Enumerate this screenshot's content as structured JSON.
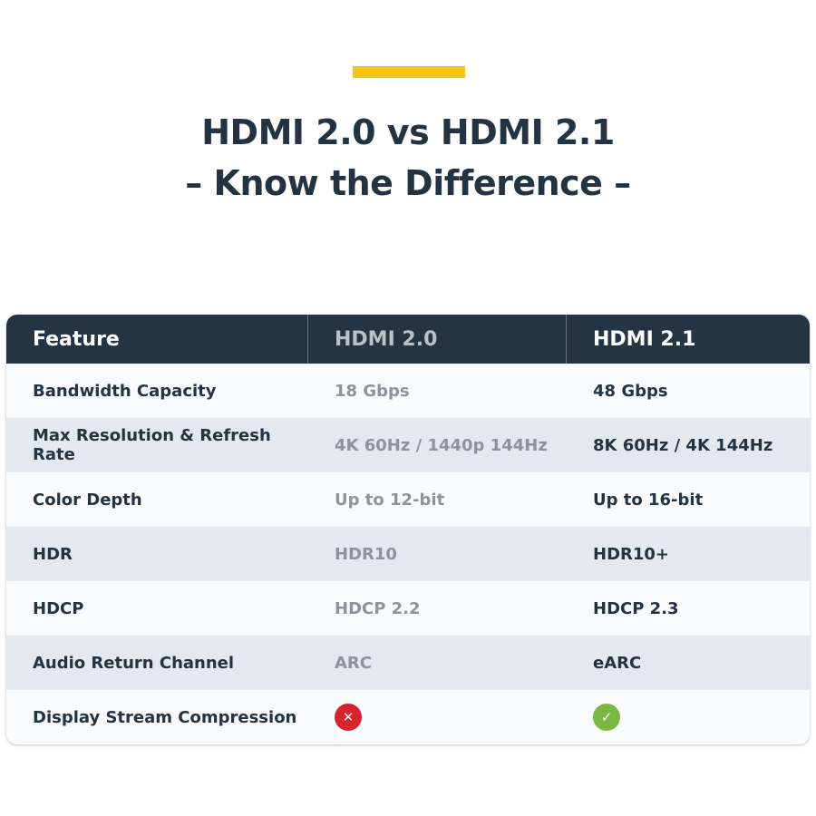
{
  "title_line1": "HDMI 2.0 vs HDMI 2.1",
  "title_line2": "– Know the Difference –",
  "accent_color": "#f5c518",
  "headers": [
    "Feature",
    "HDMI 2.0",
    "HDMI 2.1"
  ],
  "rows": [
    {
      "feature": "Bandwidth Capacity",
      "v20": "18 Gbps",
      "v21": "48 Gbps"
    },
    {
      "feature": "Max Resolution & Refresh Rate",
      "v20": "4K 60Hz / 1440p 144Hz",
      "v21": "8K 60Hz / 4K 144Hz"
    },
    {
      "feature": "Color Depth",
      "v20": "Up to 12-bit",
      "v21": "Up to 16-bit"
    },
    {
      "feature": "HDR",
      "v20": "HDR10",
      "v21": "HDR10+"
    },
    {
      "feature": "HDCP",
      "v20": "HDCP 2.2",
      "v21": "HDCP 2.3"
    },
    {
      "feature": "Audio Return Channel",
      "v20": "ARC",
      "v21": "eARC"
    }
  ],
  "last_row": {
    "feature": "Display Stream Compression",
    "v20_icon": "x-circle-icon",
    "v20_color": "#d9232a",
    "v21_icon": "check-circle-icon",
    "v21_color": "#7bb843"
  }
}
